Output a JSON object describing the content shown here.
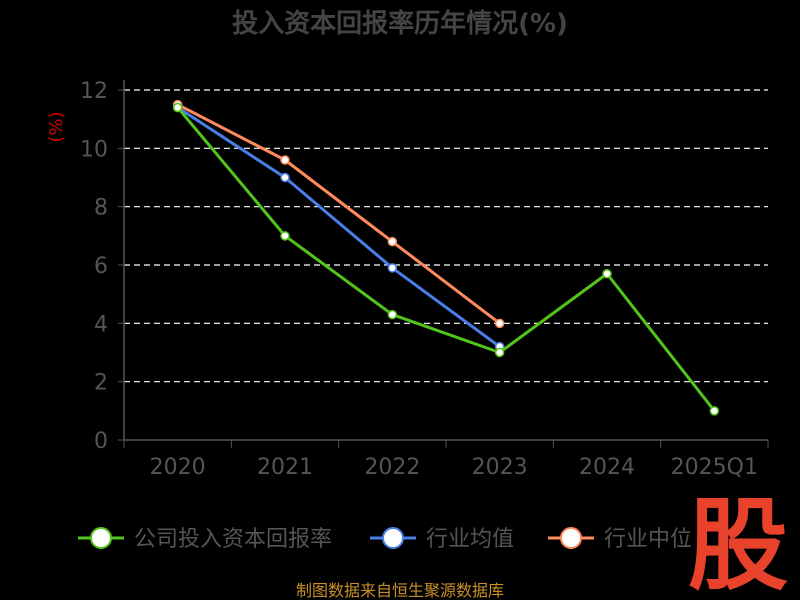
{
  "chart_data": {
    "type": "line",
    "title": "投入资本回报率历年情况(%)",
    "ylabel": "(%)",
    "categories": [
      "2020",
      "2021",
      "2022",
      "2023",
      "2024",
      "2025Q1"
    ],
    "ylim": [
      0,
      12
    ],
    "yticks": [
      0,
      2,
      4,
      6,
      8,
      10,
      12
    ],
    "grid": true,
    "legend_position": "bottom",
    "series": [
      {
        "name": "公司投入资本回报率",
        "color": "#52c41a",
        "values": [
          11.4,
          7.0,
          4.3,
          3.0,
          5.7,
          1.0
        ]
      },
      {
        "name": "行业均值",
        "color": "#4a7ee8",
        "values": [
          11.4,
          9.0,
          5.9,
          3.2,
          null,
          null
        ]
      },
      {
        "name": "行业中位",
        "color": "#ff8a5c",
        "values": [
          11.5,
          9.6,
          6.8,
          4.0,
          null,
          null
        ]
      }
    ]
  },
  "footer": {
    "source": "制图数据来自恒生聚源数据库"
  },
  "logo": {
    "text": "股"
  }
}
